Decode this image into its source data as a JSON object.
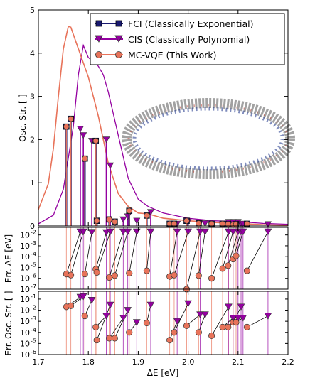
{
  "chart_data": {
    "type": "line",
    "x_label": "ΔE [eV]",
    "xlim": [
      1.7,
      2.2
    ],
    "x_ticks": [
      "1.7",
      "1.8",
      "1.9",
      "2.0",
      "2.1",
      "2.2"
    ],
    "colors": {
      "fci": "#191970",
      "cis": "#9400a0",
      "mcvqe": "#e8735a",
      "mcvqe_edge": "#333333"
    },
    "legend": [
      {
        "name": "FCI (Classically Exponential)"
      },
      {
        "name": "CIS (Classically Polynomial)"
      },
      {
        "name": "MC-VQE (This Work)"
      }
    ],
    "top": {
      "ylabel": "Osc. Str. [-]",
      "ylim": [
        0,
        5
      ],
      "y_ticks": [
        "0",
        "1",
        "2",
        "3",
        "4",
        "5"
      ],
      "fci_sticks": [
        {
          "x": 1.756,
          "y": 2.3
        },
        {
          "x": 1.765,
          "y": 2.48
        },
        {
          "x": 1.793,
          "y": 1.56
        },
        {
          "x": 1.815,
          "y": 1.97
        },
        {
          "x": 1.817,
          "y": 0.12
        },
        {
          "x": 1.842,
          "y": 0.15
        },
        {
          "x": 1.853,
          "y": 0.1
        },
        {
          "x": 1.882,
          "y": 0.35
        },
        {
          "x": 1.917,
          "y": 0.24
        },
        {
          "x": 1.963,
          "y": 0.05
        },
        {
          "x": 1.972,
          "y": 0.05
        },
        {
          "x": 1.997,
          "y": 0.12
        },
        {
          "x": 2.021,
          "y": 0.06
        },
        {
          "x": 2.047,
          "y": 0.05
        },
        {
          "x": 2.069,
          "y": 0.05
        },
        {
          "x": 2.08,
          "y": 0.04
        },
        {
          "x": 2.09,
          "y": 0.03
        },
        {
          "x": 2.096,
          "y": 0.04
        },
        {
          "x": 2.118,
          "y": 0.05
        }
      ],
      "cis_sticks": [
        {
          "x": 1.784,
          "y": 2.25
        },
        {
          "x": 1.79,
          "y": 2.1
        },
        {
          "x": 1.807,
          "y": 1.97
        },
        {
          "x": 1.836,
          "y": 2.0
        },
        {
          "x": 1.844,
          "y": 1.4
        },
        {
          "x": 1.87,
          "y": 0.15
        },
        {
          "x": 1.879,
          "y": 0.22
        },
        {
          "x": 1.897,
          "y": 0.12
        },
        {
          "x": 1.925,
          "y": 0.32
        },
        {
          "x": 1.978,
          "y": 0.05
        },
        {
          "x": 2.0,
          "y": 0.1
        },
        {
          "x": 2.024,
          "y": 0.07
        },
        {
          "x": 2.034,
          "y": 0.06
        },
        {
          "x": 2.081,
          "y": 0.09
        },
        {
          "x": 2.09,
          "y": 0.09
        },
        {
          "x": 2.1,
          "y": 0.09
        },
        {
          "x": 2.106,
          "y": 0.05
        },
        {
          "x": 2.11,
          "y": 0.05
        },
        {
          "x": 2.16,
          "y": 0.04
        }
      ],
      "mcvqe_curve": [
        {
          "x": 1.7,
          "y": 0.38
        },
        {
          "x": 1.72,
          "y": 0.98
        },
        {
          "x": 1.73,
          "y": 1.8
        },
        {
          "x": 1.74,
          "y": 3.0
        },
        {
          "x": 1.75,
          "y": 4.1
        },
        {
          "x": 1.76,
          "y": 4.62
        },
        {
          "x": 1.765,
          "y": 4.6
        },
        {
          "x": 1.78,
          "y": 4.1
        },
        {
          "x": 1.8,
          "y": 3.45
        },
        {
          "x": 1.82,
          "y": 2.55
        },
        {
          "x": 1.84,
          "y": 1.45
        },
        {
          "x": 1.86,
          "y": 0.75
        },
        {
          "x": 1.88,
          "y": 0.45
        },
        {
          "x": 1.9,
          "y": 0.3
        },
        {
          "x": 1.92,
          "y": 0.28
        },
        {
          "x": 1.95,
          "y": 0.18
        },
        {
          "x": 2.0,
          "y": 0.12
        },
        {
          "x": 2.05,
          "y": 0.08
        },
        {
          "x": 2.1,
          "y": 0.06
        },
        {
          "x": 2.15,
          "y": 0.03
        },
        {
          "x": 2.2,
          "y": 0.02
        }
      ],
      "cis_curve": [
        {
          "x": 1.7,
          "y": 0.05
        },
        {
          "x": 1.73,
          "y": 0.25
        },
        {
          "x": 1.75,
          "y": 0.85
        },
        {
          "x": 1.77,
          "y": 2.3
        },
        {
          "x": 1.78,
          "y": 3.5
        },
        {
          "x": 1.79,
          "y": 4.18
        },
        {
          "x": 1.8,
          "y": 3.9
        },
        {
          "x": 1.82,
          "y": 3.7
        },
        {
          "x": 1.83,
          "y": 3.5
        },
        {
          "x": 1.84,
          "y": 3.1
        },
        {
          "x": 1.86,
          "y": 2.1
        },
        {
          "x": 1.88,
          "y": 1.1
        },
        {
          "x": 1.9,
          "y": 0.62
        },
        {
          "x": 1.92,
          "y": 0.45
        },
        {
          "x": 1.95,
          "y": 0.3
        },
        {
          "x": 2.0,
          "y": 0.18
        },
        {
          "x": 2.05,
          "y": 0.12
        },
        {
          "x": 2.1,
          "y": 0.1
        },
        {
          "x": 2.15,
          "y": 0.06
        },
        {
          "x": 2.2,
          "y": 0.04
        }
      ]
    },
    "middle": {
      "ylabel": "Err. ΔE [eV]",
      "scale": "log",
      "ylim": [
        1e-07,
        0.05
      ],
      "y_ticks": [
        {
          "v": 1e-07,
          "base": "10",
          "exp": "-7"
        },
        {
          "v": 1e-06,
          "base": "10",
          "exp": "-6"
        },
        {
          "v": 1e-05,
          "base": "10",
          "exp": "-5"
        },
        {
          "v": 0.0001,
          "base": "10",
          "exp": "-4"
        },
        {
          "v": 0.001,
          "base": "10",
          "exp": "-3"
        },
        {
          "v": 0.01,
          "base": "10",
          "exp": "-2"
        }
      ],
      "points": [
        {
          "x_mcvqe": 1.756,
          "y_mcvqe": 2.5e-06,
          "x_cis": 1.784,
          "y_cis": 0.02
        },
        {
          "x_mcvqe": 1.765,
          "y_mcvqe": 2e-06,
          "x_cis": 1.79,
          "y_cis": 0.02
        },
        {
          "x_mcvqe": 1.793,
          "y_mcvqe": 2.5e-06,
          "x_cis": 1.807,
          "y_cis": 0.018
        },
        {
          "x_mcvqe": 1.815,
          "y_mcvqe": 7e-06,
          "x_cis": 1.836,
          "y_cis": 0.017
        },
        {
          "x_mcvqe": 1.817,
          "y_mcvqe": 3.5e-06,
          "x_cis": 1.844,
          "y_cis": 0.02
        },
        {
          "x_mcvqe": 1.842,
          "y_mcvqe": 1.2e-06,
          "x_cis": 1.87,
          "y_cis": 0.02
        },
        {
          "x_mcvqe": 1.853,
          "y_mcvqe": 1.8e-06,
          "x_cis": 1.879,
          "y_cis": 0.02
        },
        {
          "x_mcvqe": 1.882,
          "y_mcvqe": 3e-06,
          "x_cis": 1.897,
          "y_cis": 0.02
        },
        {
          "x_mcvqe": 1.917,
          "y_mcvqe": 5e-06,
          "x_cis": 1.925,
          "y_cis": 0.02
        },
        {
          "x_mcvqe": 1.963,
          "y_mcvqe": 1.5e-06,
          "x_cis": 1.978,
          "y_cis": 0.02
        },
        {
          "x_mcvqe": 1.972,
          "y_mcvqe": 2e-06,
          "x_cis": 2.0,
          "y_cis": 0.02
        },
        {
          "x_mcvqe": 1.997,
          "y_mcvqe": 1e-07,
          "x_cis": 2.024,
          "y_cis": 0.02
        },
        {
          "x_mcvqe": 2.021,
          "y_mcvqe": 1.8e-06,
          "x_cis": 2.034,
          "y_cis": 0.02
        },
        {
          "x_mcvqe": 2.047,
          "y_mcvqe": 1e-06,
          "x_cis": 2.081,
          "y_cis": 0.02
        },
        {
          "x_mcvqe": 2.069,
          "y_mcvqe": 8e-06,
          "x_cis": 2.09,
          "y_cis": 0.02
        },
        {
          "x_mcvqe": 2.08,
          "y_mcvqe": 1.5e-05,
          "x_cis": 2.1,
          "y_cis": 0.02
        },
        {
          "x_mcvqe": 2.09,
          "y_mcvqe": 6e-05,
          "x_cis": 2.106,
          "y_cis": 0.02
        },
        {
          "x_mcvqe": 2.096,
          "y_mcvqe": 0.00012,
          "x_cis": 2.11,
          "y_cis": 0.02
        },
        {
          "x_mcvqe": 2.118,
          "y_mcvqe": 5e-06,
          "x_cis": 2.16,
          "y_cis": 0.02
        }
      ]
    },
    "bottom": {
      "ylabel": "Err. Osc. Str. [-]",
      "scale": "log",
      "ylim": [
        1e-06,
        0.5
      ],
      "y_ticks": [
        {
          "v": 1e-06,
          "base": "10",
          "exp": "-6"
        },
        {
          "v": 1e-05,
          "base": "10",
          "exp": "-5"
        },
        {
          "v": 0.0001,
          "base": "10",
          "exp": "-4"
        },
        {
          "v": 0.001,
          "base": "10",
          "exp": "-3"
        },
        {
          "v": 0.01,
          "base": "10",
          "exp": "-2"
        },
        {
          "v": 0.1,
          "base": "10",
          "exp": "-1"
        }
      ],
      "points": [
        {
          "x_mcvqe": 1.756,
          "y_mcvqe": 0.02,
          "x_cis": 1.784,
          "y_cis": 0.15
        },
        {
          "x_mcvqe": 1.765,
          "y_mcvqe": 0.025,
          "x_cis": 1.79,
          "y_cis": 0.17
        },
        {
          "x_mcvqe": 1.793,
          "y_mcvqe": 0.003,
          "x_cis": 1.807,
          "y_cis": 0.08
        },
        {
          "x_mcvqe": 1.815,
          "y_mcvqe": 0.0003,
          "x_cis": 1.836,
          "y_cis": 0.003
        },
        {
          "x_mcvqe": 1.817,
          "y_mcvqe": 2e-05,
          "x_cis": 1.844,
          "y_cis": 0.03
        },
        {
          "x_mcvqe": 1.842,
          "y_mcvqe": 3e-05,
          "x_cis": 1.87,
          "y_cis": 0.002
        },
        {
          "x_mcvqe": 1.853,
          "y_mcvqe": 3e-05,
          "x_cis": 1.879,
          "y_cis": 0.01
        },
        {
          "x_mcvqe": 1.882,
          "y_mcvqe": 0.0001,
          "x_cis": 1.897,
          "y_cis": 0.0008
        },
        {
          "x_mcvqe": 1.917,
          "y_mcvqe": 0.0007,
          "x_cis": 1.925,
          "y_cis": 0.03
        },
        {
          "x_mcvqe": 1.963,
          "y_mcvqe": 2e-05,
          "x_cis": 1.978,
          "y_cis": 0.001
        },
        {
          "x_mcvqe": 1.972,
          "y_mcvqe": 0.0001,
          "x_cis": 2.0,
          "y_cis": 0.04
        },
        {
          "x_mcvqe": 1.997,
          "y_mcvqe": 0.0004,
          "x_cis": 2.024,
          "y_cis": 0.004
        },
        {
          "x_mcvqe": 2.021,
          "y_mcvqe": 0.0001,
          "x_cis": 2.034,
          "y_cis": 0.004
        },
        {
          "x_mcvqe": 2.047,
          "y_mcvqe": 5e-05,
          "x_cis": 2.081,
          "y_cis": 0.02
        },
        {
          "x_mcvqe": 2.069,
          "y_mcvqe": 0.0003,
          "x_cis": 2.09,
          "y_cis": 0.002
        },
        {
          "x_mcvqe": 2.08,
          "y_mcvqe": 0.0003,
          "x_cis": 2.1,
          "y_cis": 0.002
        },
        {
          "x_mcvqe": 2.09,
          "y_mcvqe": 0.0008,
          "x_cis": 2.106,
          "y_cis": 0.02
        },
        {
          "x_mcvqe": 2.096,
          "y_mcvqe": 0.0008,
          "x_cis": 2.11,
          "y_cis": 0.002
        },
        {
          "x_mcvqe": 2.118,
          "y_mcvqe": 0.0003,
          "x_cis": 2.16,
          "y_cis": 0.003
        }
      ]
    }
  }
}
